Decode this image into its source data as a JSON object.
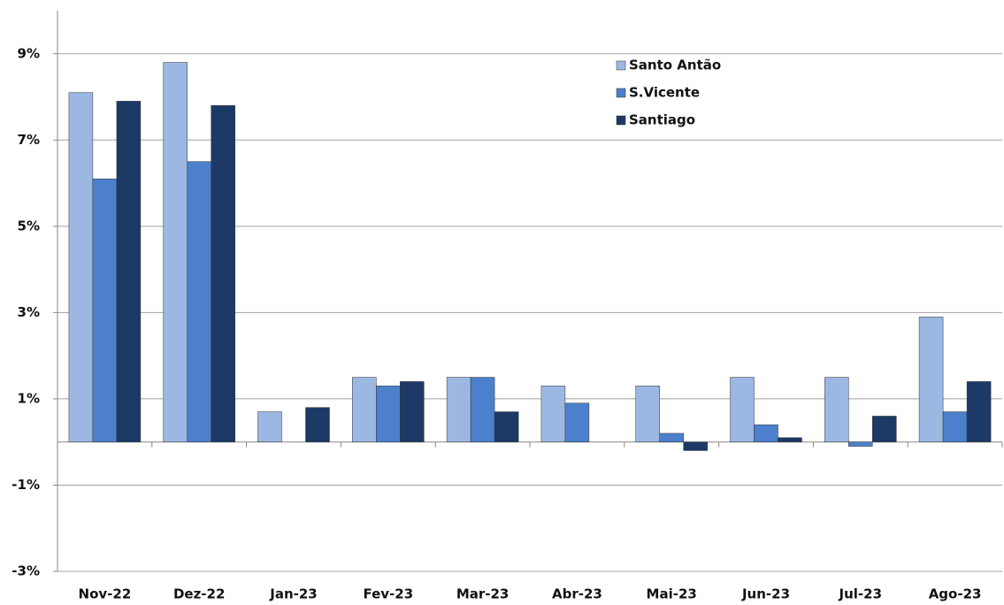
{
  "chart_data": {
    "type": "bar",
    "categories": [
      "Nov-22",
      "Dez-22",
      "Jan-23",
      "Fev-23",
      "Mar-23",
      "Abr-23",
      "Mai-23",
      "Jun-23",
      "Jul-23",
      "Ago-23"
    ],
    "series": [
      {
        "name": "Santo Antão",
        "color": "#9cb8e2",
        "values": [
          8.1,
          8.8,
          0.7,
          1.5,
          1.5,
          1.3,
          1.3,
          1.5,
          1.5,
          2.9
        ]
      },
      {
        "name": "S.Vicente",
        "color": "#4c80cc",
        "values": [
          6.1,
          6.5,
          0,
          1.3,
          1.5,
          0.9,
          0.2,
          0.4,
          -0.1,
          0.7
        ]
      },
      {
        "name": "Santiago",
        "color": "#1d3a66",
        "values": [
          7.9,
          7.8,
          0.8,
          1.4,
          0.7,
          0,
          -0.2,
          0.1,
          0.6,
          1.4
        ]
      }
    ],
    "ylim": [
      -3,
      10
    ],
    "yticks": [
      {
        "value": -3,
        "label": "-3%"
      },
      {
        "value": -1,
        "label": "-1%"
      },
      {
        "value": 1,
        "label": "1%"
      },
      {
        "value": 3,
        "label": "3%"
      },
      {
        "value": 5,
        "label": "5%"
      },
      {
        "value": 7,
        "label": "7%"
      },
      {
        "value": 9,
        "label": "9%"
      }
    ],
    "grid": true
  }
}
